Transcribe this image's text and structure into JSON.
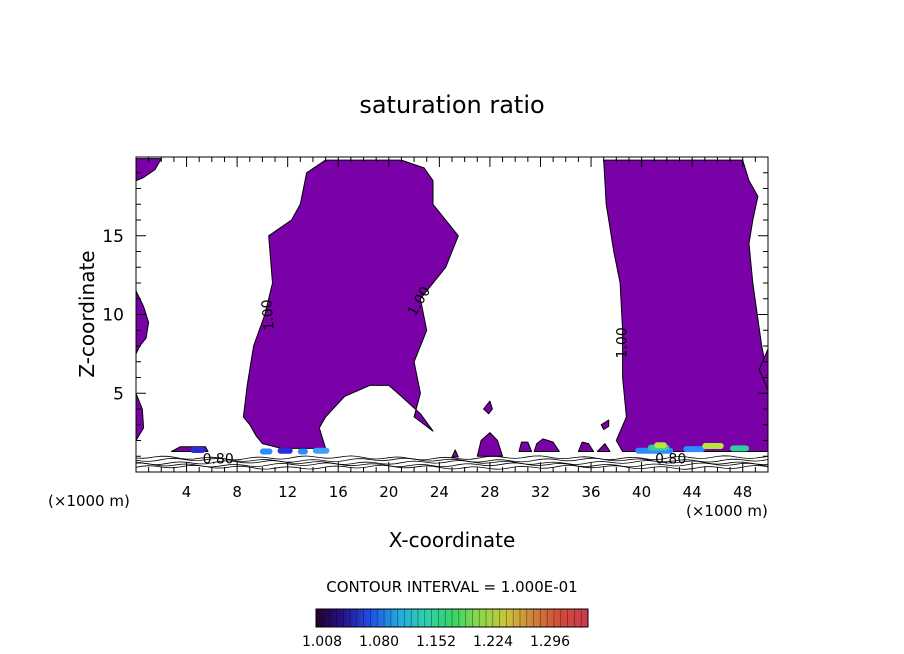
{
  "chart_data": {
    "type": "heatmap",
    "title": "saturation ratio",
    "xlabel": "X-coordinate",
    "ylabel": "Z-coordinate",
    "x_unit_left": "(×1000 m)",
    "x_unit_right": "(×1000 m)",
    "xlim": [
      0,
      50
    ],
    "ylim": [
      0,
      20
    ],
    "x_ticks": [
      4,
      8,
      12,
      16,
      20,
      24,
      28,
      32,
      36,
      40,
      44,
      48
    ],
    "y_ticks": [
      5,
      10,
      15
    ],
    "contour_labels": [
      {
        "text": "1.00",
        "x": 10.8,
        "z": 10,
        "rotate": -95
      },
      {
        "text": "1.00",
        "x": 22.7,
        "z": 10.7,
        "rotate": -60
      },
      {
        "text": "1.00",
        "x": 38.8,
        "z": 8.2,
        "rotate": -90
      },
      {
        "text": "0.80",
        "x": 6.5,
        "z": 0.55,
        "rotate": 0
      },
      {
        "text": "0.80",
        "x": 42.3,
        "z": 0.55,
        "rotate": 0
      }
    ],
    "regions": [
      {
        "name": "plume-left",
        "color": "#7a00a8",
        "points": [
          [
            11.5,
            1.5
          ],
          [
            15,
            1.5
          ],
          [
            14.5,
            2.8
          ],
          [
            15,
            3.5
          ],
          [
            16.5,
            4.8
          ],
          [
            18.5,
            5.5
          ],
          [
            20,
            5.5
          ],
          [
            21,
            4.8
          ],
          [
            22.5,
            3.7
          ],
          [
            23.5,
            2.6
          ],
          [
            22,
            3.5
          ],
          [
            22.5,
            5
          ],
          [
            22,
            7
          ],
          [
            23,
            9
          ],
          [
            22.5,
            11
          ],
          [
            24.5,
            13
          ],
          [
            25.5,
            15
          ],
          [
            24.5,
            16
          ],
          [
            23.5,
            17
          ],
          [
            23.5,
            18.5
          ],
          [
            22.8,
            19.3
          ],
          [
            21,
            19.8
          ],
          [
            15,
            19.8
          ],
          [
            13.5,
            19
          ],
          [
            13,
            17
          ],
          [
            12.3,
            16
          ],
          [
            10.5,
            15
          ],
          [
            10.8,
            12
          ],
          [
            10.2,
            10
          ],
          [
            9.3,
            8
          ],
          [
            8.8,
            5.5
          ],
          [
            8.5,
            3.5
          ],
          [
            9,
            3
          ],
          [
            9.5,
            2.3
          ],
          [
            10,
            1.8
          ]
        ]
      },
      {
        "name": "plume-right",
        "color": "#7a00a8",
        "points": [
          [
            37,
            19.8
          ],
          [
            48,
            19.8
          ],
          [
            48.5,
            18.5
          ],
          [
            49.2,
            17.5
          ],
          [
            48.8,
            16
          ],
          [
            48.5,
            14.5
          ],
          [
            48.8,
            12
          ],
          [
            49.5,
            8
          ],
          [
            50,
            6
          ],
          [
            50,
            1.3
          ],
          [
            38.5,
            1.3
          ],
          [
            38,
            2
          ],
          [
            38.8,
            3.5
          ],
          [
            38.5,
            6
          ],
          [
            38.5,
            9
          ],
          [
            38.3,
            12
          ],
          [
            37.8,
            14
          ],
          [
            37.2,
            17
          ]
        ]
      },
      {
        "name": "edge-top-left",
        "color": "#7a00a8",
        "points": [
          [
            0,
            19.9
          ],
          [
            2,
            19.9
          ],
          [
            1.5,
            19.2
          ],
          [
            0.6,
            18.7
          ],
          [
            0,
            18.5
          ]
        ]
      },
      {
        "name": "edge-mid-left",
        "color": "#7a00a8",
        "points": [
          [
            0,
            11.5
          ],
          [
            0.6,
            10.5
          ],
          [
            1,
            9.5
          ],
          [
            0.8,
            8.5
          ],
          [
            0.3,
            8
          ],
          [
            0,
            7.5
          ]
        ]
      },
      {
        "name": "edge-low-left",
        "color": "#7a00a8",
        "points": [
          [
            0,
            5
          ],
          [
            0.5,
            4
          ],
          [
            0.6,
            2.8
          ],
          [
            0,
            2
          ]
        ]
      },
      {
        "name": "edge-right-mid",
        "color": "#7a00a8",
        "points": [
          [
            50,
            7.8
          ],
          [
            49.3,
            6.5
          ],
          [
            50,
            5.2
          ]
        ]
      },
      {
        "name": "blob-left-base",
        "color": "#7a00a8",
        "points": [
          [
            2.8,
            1.3
          ],
          [
            5.7,
            1.3
          ],
          [
            5.5,
            1.6
          ],
          [
            3.5,
            1.6
          ]
        ]
      },
      {
        "name": "blob-28-high",
        "color": "#7a00a8",
        "points": [
          [
            27.5,
            4
          ],
          [
            28,
            4.5
          ],
          [
            28.2,
            4
          ],
          [
            27.9,
            3.7
          ]
        ]
      },
      {
        "name": "blob-28-low",
        "color": "#7a00a8",
        "points": [
          [
            27,
            1
          ],
          [
            29,
            1
          ],
          [
            28.6,
            2
          ],
          [
            28,
            2.5
          ],
          [
            27.3,
            2
          ]
        ]
      },
      {
        "name": "blob-30",
        "color": "#7a00a8",
        "points": [
          [
            30.3,
            1.3
          ],
          [
            31.3,
            1.3
          ],
          [
            31,
            1.9
          ],
          [
            30.5,
            1.9
          ]
        ]
      },
      {
        "name": "blob-31",
        "color": "#7a00a8",
        "points": [
          [
            31.5,
            1.3
          ],
          [
            33.5,
            1.3
          ],
          [
            33,
            1.9
          ],
          [
            32.2,
            2.1
          ],
          [
            31.7,
            1.8
          ]
        ]
      },
      {
        "name": "blob-35",
        "color": "#7a00a8",
        "points": [
          [
            35,
            1.3
          ],
          [
            36.2,
            1.3
          ],
          [
            35.8,
            1.8
          ],
          [
            35.3,
            1.9
          ]
        ]
      },
      {
        "name": "blob-25",
        "color": "#7a00a8",
        "points": [
          [
            25,
            0.95
          ],
          [
            25.5,
            0.95
          ],
          [
            25.25,
            1.4
          ]
        ]
      },
      {
        "name": "blob-36-high",
        "color": "#7a00a8",
        "points": [
          [
            36.8,
            3
          ],
          [
            37.4,
            3.3
          ],
          [
            37.4,
            2.9
          ],
          [
            37,
            2.7
          ]
        ]
      },
      {
        "name": "blob-right-low",
        "color": "#7a00a8",
        "points": [
          [
            36.5,
            1.3
          ],
          [
            37.5,
            1.3
          ],
          [
            37.1,
            1.8
          ]
        ]
      }
    ],
    "hotspots": [
      {
        "x1": 4.3,
        "x2": 5.5,
        "z": 1.4,
        "color": "#2b2bd8"
      },
      {
        "x1": 9.8,
        "x2": 10.8,
        "z": 1.3,
        "color": "#2b8cff"
      },
      {
        "x1": 11.2,
        "x2": 12.4,
        "z": 1.35,
        "color": "#2b2bd8"
      },
      {
        "x1": 12.8,
        "x2": 13.6,
        "z": 1.3,
        "color": "#2b8cff"
      },
      {
        "x1": 14.0,
        "x2": 15.3,
        "z": 1.35,
        "color": "#3aa0ff"
      },
      {
        "x1": 39.5,
        "x2": 42.5,
        "z": 1.35,
        "color": "#2b8cff"
      },
      {
        "x1": 40.5,
        "x2": 42.2,
        "z": 1.55,
        "color": "#36c9a0"
      },
      {
        "x1": 41.0,
        "x2": 42.0,
        "z": 1.7,
        "color": "#b8e63a"
      },
      {
        "x1": 43.3,
        "x2": 45.0,
        "z": 1.45,
        "color": "#2b8cff"
      },
      {
        "x1": 44.8,
        "x2": 46.5,
        "z": 1.65,
        "color": "#b8e63a"
      },
      {
        "x1": 47.0,
        "x2": 48.5,
        "z": 1.5,
        "color": "#36c9a0"
      }
    ],
    "colorbar": {
      "caption": "CONTOUR INTERVAL = 1.000E-01",
      "labels": [
        "1.008",
        "1.080",
        "1.152",
        "1.224",
        "1.296"
      ],
      "stops": [
        "#250030",
        "#26128a",
        "#2050e8",
        "#22a7e0",
        "#2ecfb0",
        "#35d46a",
        "#8cd84a",
        "#c8c43a",
        "#d0803a",
        "#d24a3a",
        "#c93c4e"
      ]
    }
  }
}
